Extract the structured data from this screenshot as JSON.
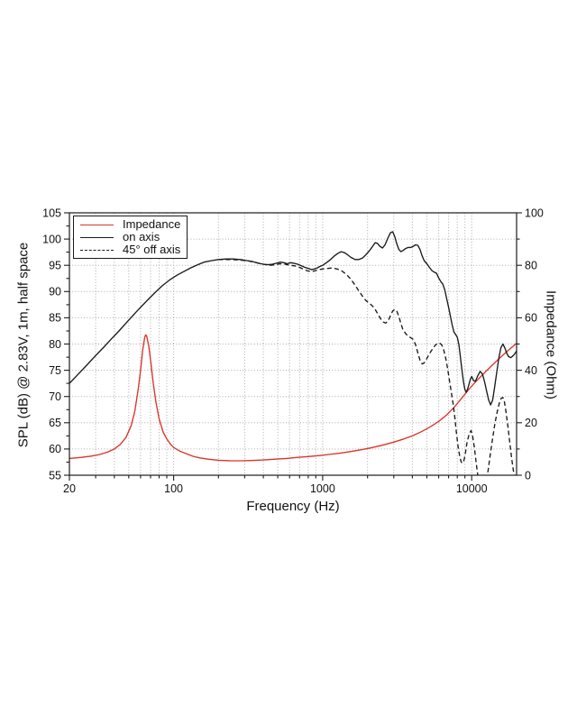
{
  "page": {
    "background": "#ffffff"
  },
  "colors": {
    "impedance_line": "#d8352a",
    "spl_line": "#1a1a1a",
    "grid": "#a9a9a9",
    "axis": "#1c1c1c",
    "text": "#111111"
  },
  "chart_data": {
    "type": "line",
    "title": "",
    "x_axis": {
      "label": "Frequency (Hz)",
      "scale": "log",
      "min": 20,
      "max": 20000,
      "major_ticks": [
        20,
        100,
        1000,
        10000
      ],
      "major_tick_labels": [
        "20",
        "100",
        "1000",
        "10000"
      ]
    },
    "y_left": {
      "label": "SPL (dB) @ 2.83V, 1m, half space",
      "min": 55,
      "max": 105,
      "tick_step": 5,
      "minor_tick_step": 2.5,
      "tick_labels": [
        "55",
        "60",
        "65",
        "70",
        "75",
        "80",
        "85",
        "90",
        "95",
        "100",
        "105"
      ]
    },
    "y_right": {
      "label": "Impedance (Ohm)",
      "min": 0,
      "max": 100,
      "tick_step": 20,
      "minor_tick_step": 10,
      "tick_labels": [
        "0",
        "20",
        "40",
        "60",
        "80",
        "100"
      ]
    },
    "grid": {
      "horizontal_every_db": 5,
      "vertical": "log minor + decades",
      "style": "dotted"
    },
    "legend": {
      "position": "top-left",
      "entries": [
        {
          "label": "Impedance",
          "color": "#d8352a",
          "dash": "none"
        },
        {
          "label": "on axis",
          "color": "#1a1a1a",
          "dash": "none"
        },
        {
          "label": "45° off axis",
          "color": "#1a1a1a",
          "dash": "dashed"
        }
      ]
    },
    "series": [
      {
        "name": "Impedance",
        "axis": "right",
        "unit": "Ohm",
        "color": "#d8352a",
        "dash": null,
        "points": [
          [
            20,
            6.4
          ],
          [
            24,
            6.8
          ],
          [
            28,
            7.3
          ],
          [
            32,
            7.9
          ],
          [
            36,
            8.8
          ],
          [
            40,
            10.0
          ],
          [
            44,
            11.8
          ],
          [
            48,
            14.5
          ],
          [
            52,
            19.0
          ],
          [
            55,
            24.5
          ],
          [
            58,
            33.0
          ],
          [
            60,
            40.0
          ],
          [
            62,
            47.5
          ],
          [
            64,
            52.5
          ],
          [
            65,
            53.5
          ],
          [
            66,
            53.0
          ],
          [
            68,
            49.5
          ],
          [
            70,
            44.0
          ],
          [
            73,
            35.0
          ],
          [
            76,
            28.0
          ],
          [
            80,
            21.5
          ],
          [
            85,
            16.5
          ],
          [
            90,
            13.8
          ],
          [
            95,
            11.9
          ],
          [
            100,
            10.6
          ],
          [
            110,
            9.2
          ],
          [
            120,
            8.3
          ],
          [
            135,
            7.2
          ],
          [
            150,
            6.6
          ],
          [
            170,
            6.1
          ],
          [
            200,
            5.7
          ],
          [
            240,
            5.5
          ],
          [
            280,
            5.5
          ],
          [
            330,
            5.6
          ],
          [
            400,
            5.8
          ],
          [
            480,
            6.1
          ],
          [
            570,
            6.4
          ],
          [
            680,
            6.8
          ],
          [
            800,
            7.1
          ],
          [
            950,
            7.5
          ],
          [
            1100,
            7.9
          ],
          [
            1300,
            8.4
          ],
          [
            1500,
            8.9
          ],
          [
            1800,
            9.7
          ],
          [
            2100,
            10.4
          ],
          [
            2500,
            11.4
          ],
          [
            3000,
            12.6
          ],
          [
            3500,
            13.8
          ],
          [
            4000,
            15.0
          ],
          [
            4600,
            16.6
          ],
          [
            5300,
            18.5
          ],
          [
            6000,
            20.5
          ],
          [
            6800,
            23.0
          ],
          [
            7700,
            26.2
          ],
          [
            8600,
            29.5
          ],
          [
            9500,
            32.5
          ],
          [
            10500,
            35.3
          ],
          [
            11500,
            37.6
          ],
          [
            12500,
            39.7
          ],
          [
            13700,
            41.9
          ],
          [
            15000,
            44.0
          ],
          [
            16300,
            45.9
          ],
          [
            17600,
            47.6
          ],
          [
            19000,
            49.2
          ],
          [
            20000,
            50.3
          ]
        ]
      },
      {
        "name": "on axis",
        "axis": "left",
        "unit": "dB",
        "color": "#1a1a1a",
        "dash": null,
        "points": [
          [
            20,
            72.5
          ],
          [
            23,
            74.3
          ],
          [
            26,
            75.9
          ],
          [
            30,
            77.8
          ],
          [
            34,
            79.4
          ],
          [
            38,
            80.9
          ],
          [
            43,
            82.5
          ],
          [
            48,
            84.0
          ],
          [
            54,
            85.6
          ],
          [
            60,
            87.0
          ],
          [
            67,
            88.4
          ],
          [
            75,
            89.8
          ],
          [
            84,
            91.1
          ],
          [
            95,
            92.3
          ],
          [
            105,
            93.1
          ],
          [
            115,
            93.7
          ],
          [
            130,
            94.5
          ],
          [
            145,
            95.1
          ],
          [
            160,
            95.6
          ],
          [
            180,
            95.9
          ],
          [
            200,
            96.1
          ],
          [
            225,
            96.2
          ],
          [
            250,
            96.2
          ],
          [
            280,
            96.1
          ],
          [
            310,
            95.9
          ],
          [
            340,
            95.7
          ],
          [
            370,
            95.4
          ],
          [
            400,
            95.2
          ],
          [
            430,
            95.1
          ],
          [
            460,
            95.2
          ],
          [
            490,
            95.4
          ],
          [
            520,
            95.6
          ],
          [
            550,
            95.5
          ],
          [
            580,
            95.3
          ],
          [
            610,
            95.5
          ],
          [
            640,
            95.4
          ],
          [
            680,
            95.2
          ],
          [
            720,
            94.9
          ],
          [
            760,
            94.6
          ],
          [
            800,
            94.4
          ],
          [
            840,
            94.2
          ],
          [
            880,
            94.3
          ],
          [
            920,
            94.5
          ],
          [
            960,
            94.8
          ],
          [
            1000,
            95.0
          ],
          [
            1060,
            95.5
          ],
          [
            1130,
            96.1
          ],
          [
            1200,
            96.8
          ],
          [
            1270,
            97.3
          ],
          [
            1330,
            97.6
          ],
          [
            1400,
            97.4
          ],
          [
            1470,
            97.0
          ],
          [
            1550,
            96.5
          ],
          [
            1650,
            96.1
          ],
          [
            1750,
            96.1
          ],
          [
            1850,
            96.4
          ],
          [
            1950,
            97.0
          ],
          [
            2050,
            97.7
          ],
          [
            2150,
            98.5
          ],
          [
            2250,
            99.3
          ],
          [
            2330,
            99.2
          ],
          [
            2420,
            98.6
          ],
          [
            2520,
            98.3
          ],
          [
            2620,
            98.9
          ],
          [
            2730,
            100.1
          ],
          [
            2850,
            101.2
          ],
          [
            2950,
            101.4
          ],
          [
            3050,
            100.4
          ],
          [
            3150,
            99.0
          ],
          [
            3250,
            98.0
          ],
          [
            3350,
            97.6
          ],
          [
            3450,
            97.8
          ],
          [
            3600,
            98.2
          ],
          [
            3750,
            98.4
          ],
          [
            3900,
            98.4
          ],
          [
            4050,
            98.6
          ],
          [
            4200,
            98.9
          ],
          [
            4350,
            98.8
          ],
          [
            4500,
            98.0
          ],
          [
            4650,
            96.8
          ],
          [
            4800,
            95.9
          ],
          [
            5000,
            95.3
          ],
          [
            5200,
            94.6
          ],
          [
            5400,
            94.0
          ],
          [
            5600,
            93.7
          ],
          [
            5800,
            93.5
          ],
          [
            6000,
            92.6
          ],
          [
            6200,
            91.9
          ],
          [
            6400,
            91.4
          ],
          [
            6600,
            90.3
          ],
          [
            6800,
            88.6
          ],
          [
            7000,
            87.0
          ],
          [
            7200,
            85.3
          ],
          [
            7400,
            83.6
          ],
          [
            7600,
            82.3
          ],
          [
            7800,
            81.8
          ],
          [
            8000,
            81.3
          ],
          [
            8200,
            79.9
          ],
          [
            8400,
            77.5
          ],
          [
            8600,
            75.0
          ],
          [
            8800,
            72.8
          ],
          [
            9000,
            71.3
          ],
          [
            9200,
            70.8
          ],
          [
            9400,
            71.5
          ],
          [
            9600,
            72.4
          ],
          [
            9800,
            73.3
          ],
          [
            10000,
            73.8
          ],
          [
            10300,
            73.0
          ],
          [
            10600,
            72.9
          ],
          [
            11000,
            74.0
          ],
          [
            11400,
            74.8
          ],
          [
            11800,
            74.3
          ],
          [
            12200,
            72.8
          ],
          [
            12600,
            71.0
          ],
          [
            13000,
            69.3
          ],
          [
            13400,
            68.4
          ],
          [
            13800,
            69.3
          ],
          [
            14200,
            71.5
          ],
          [
            14700,
            74.5
          ],
          [
            15200,
            77.3
          ],
          [
            15700,
            79.3
          ],
          [
            16200,
            80.0
          ],
          [
            16700,
            79.2
          ],
          [
            17200,
            78.2
          ],
          [
            17700,
            77.6
          ],
          [
            18300,
            77.4
          ],
          [
            19000,
            77.8
          ],
          [
            19500,
            78.2
          ],
          [
            20000,
            78.7
          ]
        ]
      },
      {
        "name": "45° off axis",
        "axis": "left",
        "unit": "dB",
        "color": "#1a1a1a",
        "dash": "5 3.2",
        "points": [
          [
            200,
            96.1
          ],
          [
            240,
            96.1
          ],
          [
            280,
            96.0
          ],
          [
            320,
            95.8
          ],
          [
            360,
            95.5
          ],
          [
            400,
            95.2
          ],
          [
            440,
            95.0
          ],
          [
            480,
            95.1
          ],
          [
            520,
            95.3
          ],
          [
            560,
            95.2
          ],
          [
            600,
            95.0
          ],
          [
            650,
            94.9
          ],
          [
            700,
            94.6
          ],
          [
            750,
            94.2
          ],
          [
            800,
            93.9
          ],
          [
            850,
            93.8
          ],
          [
            900,
            94.0
          ],
          [
            950,
            94.2
          ],
          [
            1000,
            94.3
          ],
          [
            1080,
            94.4
          ],
          [
            1160,
            94.5
          ],
          [
            1250,
            94.3
          ],
          [
            1350,
            93.9
          ],
          [
            1450,
            93.2
          ],
          [
            1550,
            92.3
          ],
          [
            1650,
            91.2
          ],
          [
            1750,
            90.1
          ],
          [
            1850,
            89.1
          ],
          [
            1950,
            88.3
          ],
          [
            2050,
            87.8
          ],
          [
            2150,
            87.3
          ],
          [
            2250,
            86.6
          ],
          [
            2350,
            85.7
          ],
          [
            2450,
            84.8
          ],
          [
            2550,
            84.2
          ],
          [
            2650,
            84.0
          ],
          [
            2750,
            84.4
          ],
          [
            2850,
            85.4
          ],
          [
            2950,
            86.3
          ],
          [
            3050,
            86.6
          ],
          [
            3150,
            86.2
          ],
          [
            3250,
            85.2
          ],
          [
            3350,
            83.9
          ],
          [
            3450,
            82.8
          ],
          [
            3600,
            82.0
          ],
          [
            3750,
            81.5
          ],
          [
            3900,
            81.2
          ],
          [
            4050,
            80.9
          ],
          [
            4200,
            79.9
          ],
          [
            4350,
            78.3
          ],
          [
            4500,
            76.9
          ],
          [
            4650,
            76.2
          ],
          [
            4800,
            76.4
          ],
          [
            4950,
            77.0
          ],
          [
            5100,
            77.7
          ],
          [
            5300,
            78.5
          ],
          [
            5500,
            79.2
          ],
          [
            5700,
            79.8
          ],
          [
            5900,
            80.1
          ],
          [
            6100,
            80.2
          ],
          [
            6300,
            79.8
          ],
          [
            6500,
            78.8
          ],
          [
            6700,
            77.2
          ],
          [
            6900,
            75.2
          ],
          [
            7100,
            73.0
          ],
          [
            7300,
            70.8
          ],
          [
            7500,
            68.6
          ],
          [
            7700,
            66.0
          ],
          [
            7900,
            63.0
          ],
          [
            8100,
            60.5
          ],
          [
            8300,
            58.6
          ],
          [
            8500,
            57.5
          ],
          [
            8700,
            57.3
          ],
          [
            8900,
            58.0
          ],
          [
            9100,
            59.5
          ],
          [
            9300,
            61.2
          ],
          [
            9600,
            62.8
          ],
          [
            9900,
            63.5
          ],
          [
            10100,
            62.8
          ],
          [
            10400,
            60.5
          ],
          [
            10700,
            57.5
          ],
          [
            11000,
            54.8
          ],
          [
            11300,
            52.5
          ],
          [
            11700,
            51.5
          ],
          [
            12100,
            52.0
          ],
          [
            12500,
            53.8
          ],
          [
            12900,
            56.0
          ],
          [
            13300,
            58.8
          ],
          [
            13800,
            62.0
          ],
          [
            14300,
            64.8
          ],
          [
            14800,
            67.0
          ],
          [
            15300,
            68.7
          ],
          [
            15800,
            69.7
          ],
          [
            16200,
            69.8
          ],
          [
            16600,
            68.9
          ],
          [
            17000,
            67.0
          ],
          [
            17500,
            64.3
          ],
          [
            18000,
            61.3
          ],
          [
            18500,
            58.4
          ],
          [
            19000,
            56.0
          ],
          [
            19500,
            54.6
          ],
          [
            20000,
            54.0
          ]
        ]
      }
    ]
  }
}
